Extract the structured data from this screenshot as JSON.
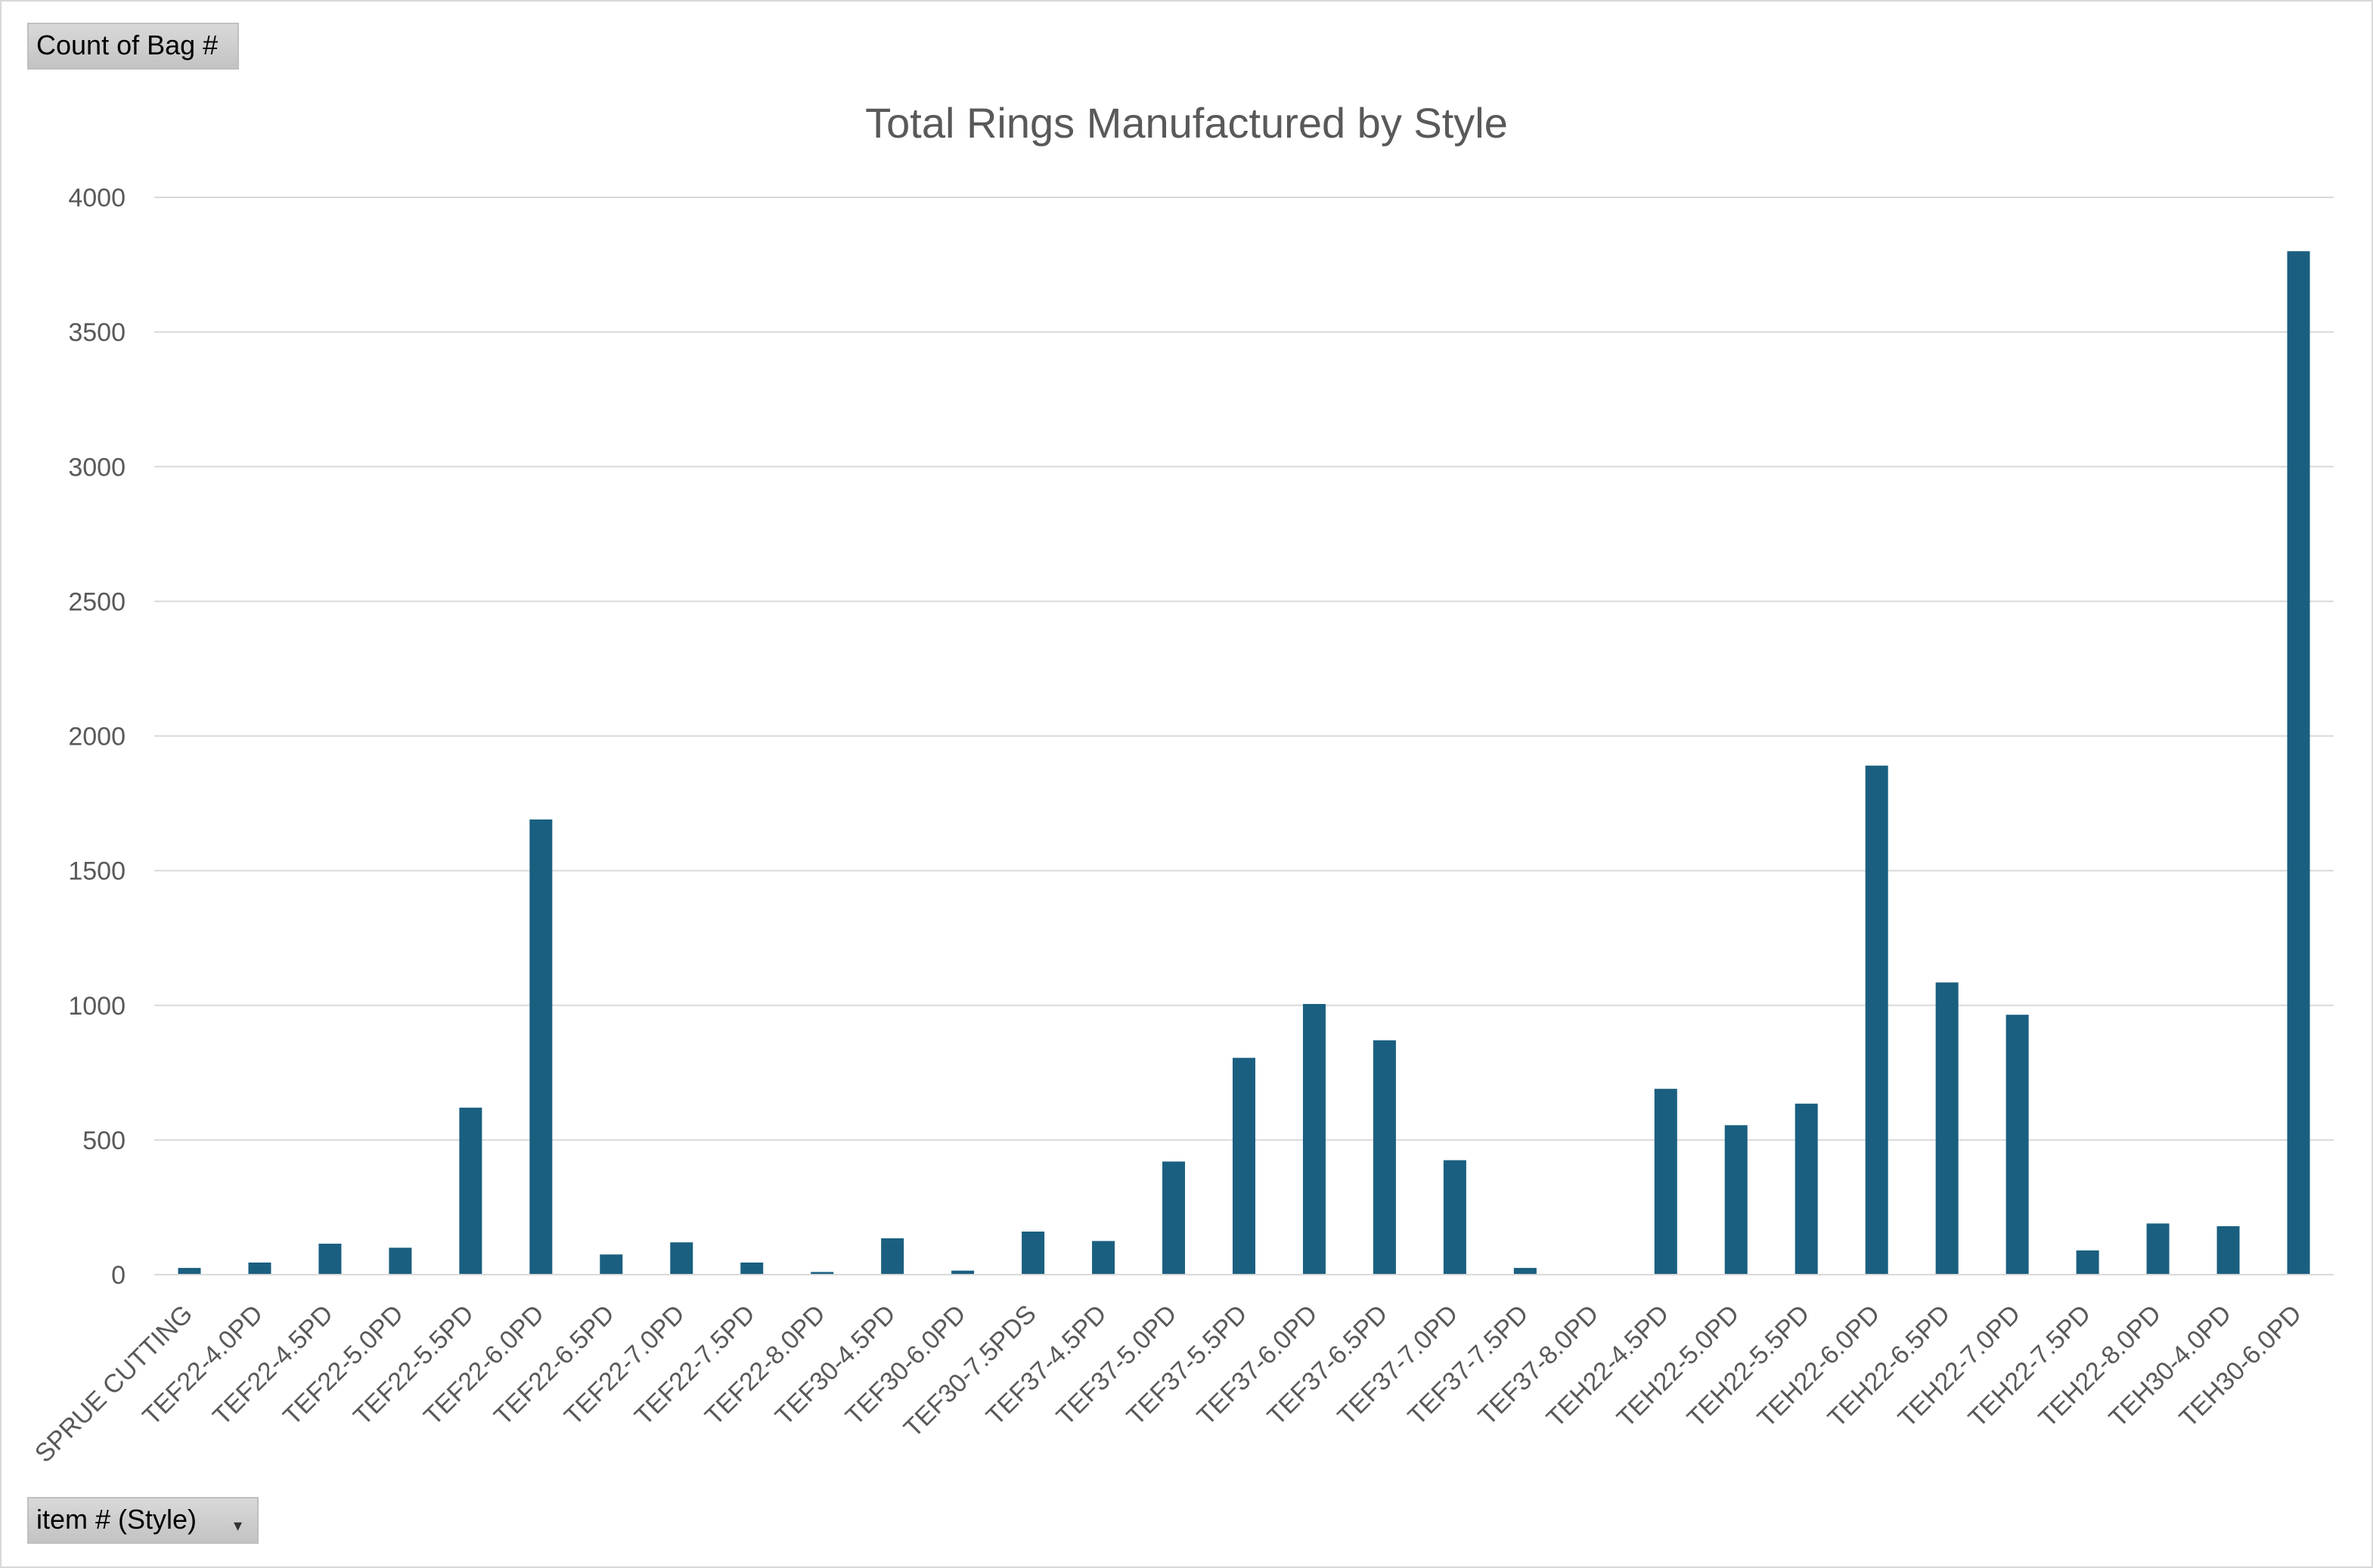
{
  "pivot": {
    "value_field": "Count of Bag #",
    "axis_field": "item # (Style)"
  },
  "chart_data": {
    "type": "bar",
    "title": "Total Rings Manufactured by Style",
    "xlabel": "",
    "ylabel": "",
    "ylim": [
      0,
      4000
    ],
    "yticks": [
      0,
      500,
      1000,
      1500,
      2000,
      2500,
      3000,
      3500,
      4000
    ],
    "grid": true,
    "legend": "none",
    "bar_color": "#1a5f80",
    "categories": [
      "SPRUE CUTTING",
      "TEF22-4.0PD",
      "TEF22-4.5PD",
      "TEF22-5.0PD",
      "TEF22-5.5PD",
      "TEF22-6.0PD",
      "TEF22-6.5PD",
      "TEF22-7.0PD",
      "TEF22-7.5PD",
      "TEF22-8.0PD",
      "TEF30-4.5PD",
      "TEF30-6.0PD",
      "TEF30-7.5PDS",
      "TEF37-4.5PD",
      "TEF37-5.0PD",
      "TEF37-5.5PD",
      "TEF37-6.0PD",
      "TEF37-6.5PD",
      "TEF37-7.0PD",
      "TEF37-7.5PD",
      "TEF37-8.0PD",
      "TEH22-4.5PD",
      "TEH22-5.0PD",
      "TEH22-5.5PD",
      "TEH22-6.0PD",
      "TEH22-6.5PD",
      "TEH22-7.0PD",
      "TEH22-7.5PD",
      "TEH22-8.0PD",
      "TEH30-4.0PD",
      "TEH30-6.0PD"
    ],
    "values": [
      25,
      45,
      115,
      100,
      620,
      1690,
      75,
      120,
      45,
      10,
      135,
      15,
      160,
      125,
      420,
      805,
      1005,
      870,
      425,
      25,
      0,
      690,
      555,
      635,
      1890,
      1085,
      965,
      90,
      190,
      180,
      3800
    ]
  }
}
